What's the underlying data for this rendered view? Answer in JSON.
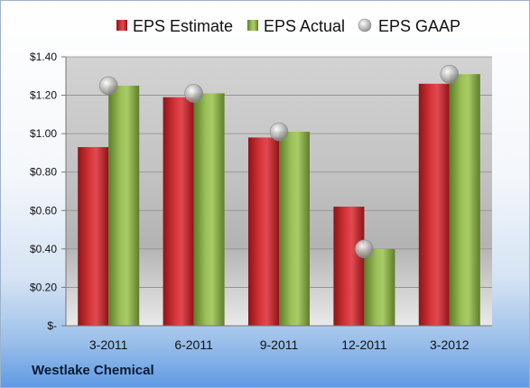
{
  "company": "Westlake Chemical",
  "chart_data": {
    "type": "bar",
    "categories": [
      "3-2011",
      "6-2011",
      "9-2011",
      "12-2011",
      "3-2012"
    ],
    "series": [
      {
        "name": "EPS Estimate",
        "kind": "bar",
        "color": "#c0272d",
        "values": [
          0.93,
          1.19,
          0.98,
          0.62,
          1.26
        ]
      },
      {
        "name": "EPS Actual",
        "kind": "bar",
        "color": "#8db04a",
        "values": [
          1.25,
          1.21,
          1.01,
          0.4,
          1.31
        ]
      },
      {
        "name": "EPS GAAP",
        "kind": "marker",
        "color": "#a7a7a7",
        "values": [
          1.25,
          1.21,
          1.01,
          0.4,
          1.31
        ]
      }
    ],
    "ylim": [
      0,
      1.4
    ],
    "yticks": [
      0,
      0.2,
      0.4,
      0.6,
      0.8,
      1.0,
      1.2,
      1.4
    ],
    "ytick_labels": [
      "$-",
      "$0.20",
      "$0.40",
      "$0.60",
      "$0.80",
      "$1.00",
      "$1.20",
      "$1.40"
    ],
    "legend_position": "top",
    "grid": true
  }
}
